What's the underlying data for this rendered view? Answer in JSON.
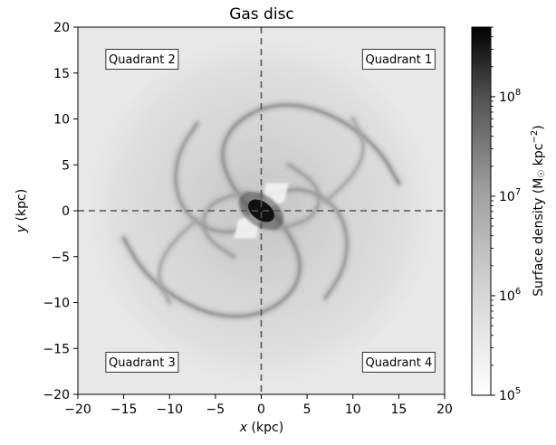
{
  "chart_data": {
    "type": "heatmap",
    "title": "Gas disc",
    "xlabel": "x (kpc)",
    "ylabel": "y (kpc)",
    "xlim": [
      -20,
      20
    ],
    "ylim": [
      -20,
      20
    ],
    "xticks": [
      -20,
      -15,
      -10,
      -5,
      0,
      5,
      10,
      15,
      20
    ],
    "yticks": [
      -20,
      -15,
      -10,
      -5,
      0,
      5,
      10,
      15,
      20
    ],
    "xtick_labels": [
      "−20",
      "−15",
      "−10",
      "−5",
      "0",
      "5",
      "10",
      "15",
      "20"
    ],
    "ytick_labels": [
      "−20",
      "−15",
      "−10",
      "−5",
      "0",
      "5",
      "10",
      "15",
      "20"
    ],
    "crosshair": {
      "x": 0,
      "y": 0,
      "style": "dashed"
    },
    "quadrant_labels": [
      {
        "text": "Quadrant 1",
        "x": 15,
        "y": 16.5
      },
      {
        "text": "Quadrant 2",
        "x": -13,
        "y": 16.5
      },
      {
        "text": "Quadrant 3",
        "x": -13,
        "y": -16.5
      },
      {
        "text": "Quadrant 4",
        "x": 15,
        "y": -16.5
      }
    ],
    "colorbar": {
      "label_main": "Surface density (M",
      "label_sun": "☉",
      "label_unit": " kpc",
      "label_exp": "−2",
      "label_close": ")",
      "scale": "log",
      "range": [
        100000,
        500000000
      ],
      "colormap": "Greys",
      "ticks": [
        {
          "value": 100000,
          "base": "10",
          "exp": "5"
        },
        {
          "value": 1000000,
          "base": "10",
          "exp": "6"
        },
        {
          "value": 10000000,
          "base": "10",
          "exp": "7"
        },
        {
          "value": 100000000,
          "base": "10",
          "exp": "8"
        }
      ]
    },
    "spiral_arms": [
      {
        "points": [
          [
            1.5,
            -0.5
          ],
          [
            3.5,
            -3
          ],
          [
            4.5,
            -6.5
          ],
          [
            3,
            -9.5
          ],
          [
            -0.5,
            -11.5
          ],
          [
            -5,
            -11.5
          ],
          [
            -9.5,
            -9.5
          ],
          [
            -13,
            -6.5
          ],
          [
            -15,
            -3
          ]
        ],
        "density": 0.55
      },
      {
        "points": [
          [
            -1.5,
            0.5
          ],
          [
            -3.5,
            3
          ],
          [
            -4.5,
            6.5
          ],
          [
            -3,
            9.5
          ],
          [
            0.5,
            11.5
          ],
          [
            5,
            11.5
          ],
          [
            9.5,
            9.5
          ],
          [
            13,
            6.5
          ],
          [
            15,
            3
          ]
        ],
        "density": 0.55
      },
      {
        "points": [
          [
            0,
            1.5
          ],
          [
            3,
            2.5
          ],
          [
            6,
            2
          ],
          [
            8.5,
            0
          ],
          [
            9.5,
            -3
          ],
          [
            9,
            -6.5
          ],
          [
            7,
            -9.5
          ]
        ],
        "density": 0.5
      },
      {
        "points": [
          [
            0,
            -1.5
          ],
          [
            -3,
            -2.5
          ],
          [
            -6,
            -2
          ],
          [
            -8.5,
            0
          ],
          [
            -9.5,
            3
          ],
          [
            -9,
            6.5
          ],
          [
            -7,
            9.5
          ]
        ],
        "density": 0.5
      },
      {
        "points": [
          [
            -1.5,
            2
          ],
          [
            -4.5,
            1.5
          ],
          [
            -6.5,
            -0.5
          ],
          [
            -6,
            -3
          ],
          [
            -3,
            -5
          ]
        ],
        "density": 0.45
      },
      {
        "points": [
          [
            1.5,
            -2
          ],
          [
            4.5,
            -1.5
          ],
          [
            6.5,
            0.5
          ],
          [
            6,
            3
          ],
          [
            3,
            5
          ]
        ],
        "density": 0.45
      },
      {
        "points": [
          [
            -7,
            -1
          ],
          [
            -10,
            -3.5
          ],
          [
            -11.5,
            -7
          ],
          [
            -10,
            -10
          ]
        ],
        "density": 0.4
      },
      {
        "points": [
          [
            7,
            1
          ],
          [
            10,
            3.5
          ],
          [
            11.5,
            7
          ],
          [
            10,
            10
          ]
        ],
        "density": 0.4
      }
    ],
    "core": {
      "x": 0,
      "y": 0,
      "rx": 1.6,
      "ry": 1.0,
      "angle_deg": -35
    }
  }
}
